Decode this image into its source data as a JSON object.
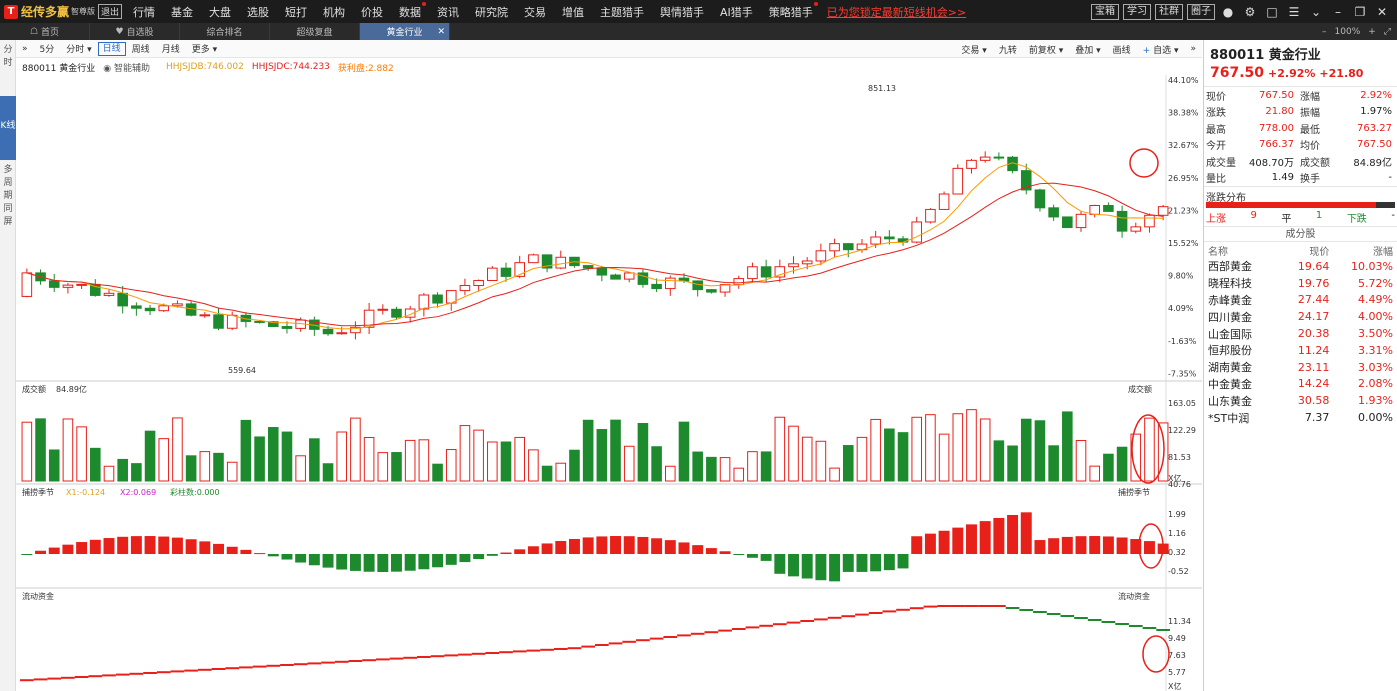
{
  "app": {
    "logo_mark": "T",
    "name": "经传多赢",
    "edition": "智尊版",
    "exit": "退出"
  },
  "menu": [
    {
      "label": "行情",
      "dot": false
    },
    {
      "label": "基金",
      "dot": false
    },
    {
      "label": "大盘",
      "dot": false
    },
    {
      "label": "选股",
      "dot": false
    },
    {
      "label": "短打",
      "dot": false
    },
    {
      "label": "机构",
      "dot": false
    },
    {
      "label": "价投",
      "dot": false
    },
    {
      "label": "数据",
      "dot": true
    },
    {
      "label": "资讯",
      "dot": false
    },
    {
      "label": "研究院",
      "dot": false
    },
    {
      "label": "交易",
      "dot": false
    },
    {
      "label": "增值",
      "dot": false
    },
    {
      "label": "主题猎手",
      "dot": false
    },
    {
      "label": "舆情猎手",
      "dot": false
    },
    {
      "label": "AI猎手",
      "dot": false
    },
    {
      "label": "策略猎手",
      "dot": true
    }
  ],
  "promo": "已为您锁定最新短线机会>>",
  "top_buttons": [
    "宝箱",
    "学习",
    "社群",
    "圈子"
  ],
  "tabs": [
    {
      "label": "首页",
      "icon": "home-icon",
      "active": false
    },
    {
      "label": "自选股",
      "icon": "heart-icon",
      "active": false
    },
    {
      "label": "综合排名",
      "icon": "",
      "active": false
    },
    {
      "label": "超级复盘",
      "icon": "",
      "active": false
    },
    {
      "label": "黄金行业",
      "icon": "",
      "active": true
    }
  ],
  "zoom": "100%",
  "left_strip": [
    "分时",
    "K线",
    "多周期同屏"
  ],
  "toolbar": {
    "periods": [
      "5分",
      "分时",
      "日线",
      "周线",
      "月线",
      "更多"
    ],
    "active_period": "日线",
    "right": [
      "交易",
      "九转",
      "前复权",
      "叠加",
      "画线",
      "自选"
    ]
  },
  "info": {
    "stock": "880011 黄金行业",
    "assist": "智能辅助",
    "hhjsjdb": "HHJSJDB:746.002",
    "hhjsjdc": "HHJSJDC:744.233",
    "ratio": "获利盘:2.882"
  },
  "panels": {
    "main": {
      "hi_label": "851.13",
      "lo_label": "559.64",
      "axis": [
        "44.10%",
        "38.38%",
        "32.67%",
        "26.95%",
        "21.23%",
        "15.52%",
        "9.80%",
        "4.09%",
        "-1.63%",
        "-7.35%"
      ]
    },
    "volume": {
      "title": "成交额",
      "value": "84.89亿",
      "right_label": "成交额",
      "axis": [
        "163.05",
        "122.29",
        "81.53",
        "40.76"
      ],
      "unit": "X亿"
    },
    "macd": {
      "title": "捕捞季节",
      "x1": "X1:-0.124",
      "x2": "X2:0.069",
      "bar": "彩柱数:0.000",
      "right_label": "捕捞季节",
      "axis": [
        "1.99",
        "1.16",
        "0.32",
        "-0.52"
      ]
    },
    "flow": {
      "title": "流动资金",
      "right_label": "流动资金",
      "axis": [
        "11.34",
        "9.49",
        "7.63",
        "5.77"
      ],
      "unit": "X亿"
    }
  },
  "side": {
    "code_name": "880011 黄金行业",
    "price": "767.50",
    "pct": "+2.92%",
    "chg": "+21.80",
    "quote": [
      {
        "l": "现价",
        "v": "767.50",
        "c": "red",
        "l2": "涨幅",
        "v2": "2.92%",
        "c2": "red"
      },
      {
        "l": "涨跌",
        "v": "21.80",
        "c": "red",
        "l2": "振幅",
        "v2": "1.97%",
        "c2": ""
      },
      {
        "l": "最高",
        "v": "778.00",
        "c": "red",
        "l2": "最低",
        "v2": "763.27",
        "c2": "red"
      },
      {
        "l": "今开",
        "v": "766.37",
        "c": "red",
        "l2": "均价",
        "v2": "767.50",
        "c2": "red"
      },
      {
        "l": "成交量",
        "v": "408.70万",
        "c": "",
        "l2": "成交额",
        "v2": "84.89亿",
        "c2": ""
      },
      {
        "l": "量比",
        "v": "1.49",
        "c": "",
        "l2": "换手",
        "v2": "-",
        "c2": ""
      }
    ],
    "dist_title": "涨跌分布",
    "up_label": "上涨",
    "up": "9",
    "flat_label": "平",
    "flat": "1",
    "down_label": "下跌",
    "down": "-",
    "comp_title": "成分股",
    "comp_head": [
      "名称",
      "现价",
      "涨幅"
    ],
    "components": [
      {
        "name": "西部黄金",
        "price": "19.64",
        "pct": "10.03%",
        "c": "red"
      },
      {
        "name": "晓程科技",
        "price": "19.76",
        "pct": "5.72%",
        "c": "red"
      },
      {
        "name": "赤峰黄金",
        "price": "27.44",
        "pct": "4.49%",
        "c": "red"
      },
      {
        "name": "四川黄金",
        "price": "24.17",
        "pct": "4.00%",
        "c": "red"
      },
      {
        "name": "山金国际",
        "price": "20.38",
        "pct": "3.50%",
        "c": "red"
      },
      {
        "name": "恒邦股份",
        "price": "11.24",
        "pct": "3.31%",
        "c": "red"
      },
      {
        "name": "湖南黄金",
        "price": "23.11",
        "pct": "3.03%",
        "c": "red"
      },
      {
        "name": "中金黄金",
        "price": "14.24",
        "pct": "2.08%",
        "c": "red"
      },
      {
        "name": "山东黄金",
        "price": "30.58",
        "pct": "1.93%",
        "c": "red"
      },
      {
        "name": "*ST中润",
        "price": "7.37",
        "pct": "0.00%",
        "c": ""
      }
    ]
  },
  "colors": {
    "up": "#e8201a",
    "down": "#1e8a2e",
    "ma1": "#ff9900",
    "ma2": "#e8201a"
  }
}
